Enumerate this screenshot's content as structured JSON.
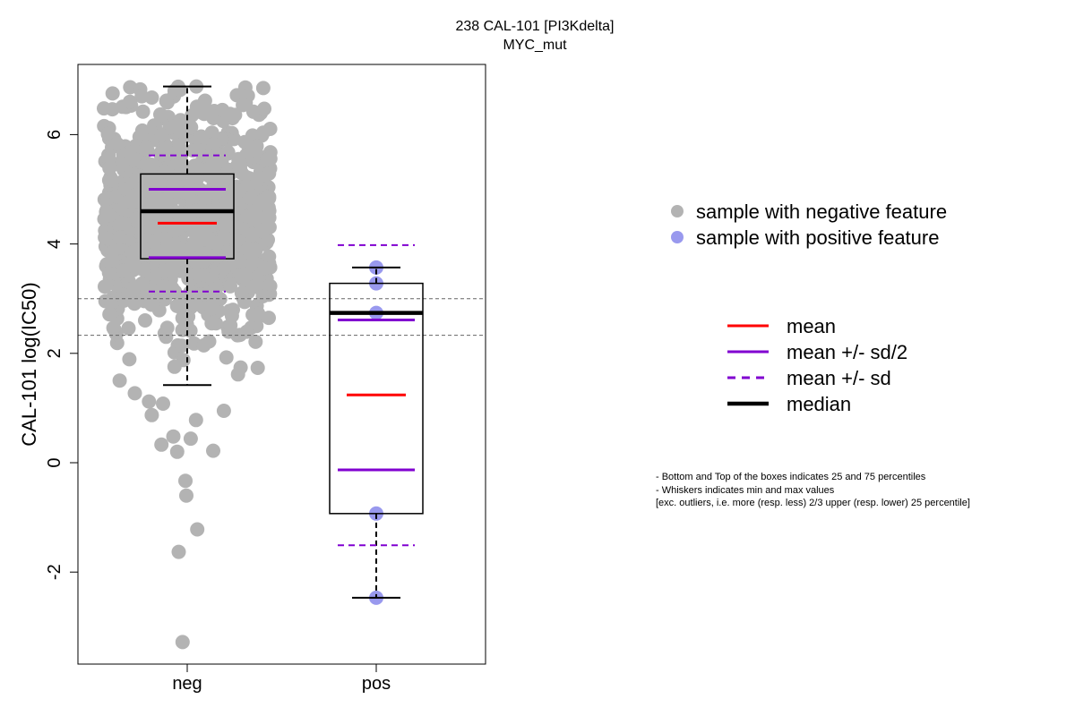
{
  "chart_data": {
    "type": "box+beeswarm",
    "title": "238 CAL-101 [PI3Kdelta]",
    "subtitle": "MYC_mut",
    "ylabel": "CAL-101 log(IC50)",
    "xlabel": "",
    "ylim": [
      -3.7,
      7.3
    ],
    "yticks": [
      -2,
      0,
      2,
      4,
      6
    ],
    "ytick_labels": [
      "-2",
      "0",
      "2",
      "4",
      "6"
    ],
    "categories": [
      "neg",
      "pos"
    ],
    "reference_lines": [
      3.0,
      2.33
    ],
    "colors": {
      "neg_points": "#b3b3b3",
      "pos_points": "#9999ee",
      "mean": "#ff0000",
      "sd": "#8000d0",
      "median": "#000000"
    },
    "groups": [
      {
        "name": "neg",
        "whisker_low": 1.42,
        "q1": 3.73,
        "median": 4.6,
        "q3": 5.28,
        "whisker_high": 6.88,
        "mean": 4.38,
        "mean_minus_half_sd": 3.75,
        "mean_plus_half_sd": 5.0,
        "mean_minus_sd": 3.13,
        "mean_plus_sd": 5.62,
        "outliers": [
          1.27,
          1.12,
          1.08,
          0.95,
          0.87,
          0.78,
          0.48,
          0.44,
          0.33,
          0.22,
          0.2,
          -0.33,
          -0.6,
          -1.22,
          -1.63,
          -3.28
        ],
        "n_points_drawn": 1000
      },
      {
        "name": "pos",
        "whisker_low": -2.47,
        "q1": -0.93,
        "median": 2.74,
        "q3": 3.28,
        "whisker_high": 3.57,
        "mean": 1.24,
        "mean_minus_half_sd": -0.13,
        "mean_plus_half_sd": 2.61,
        "mean_minus_sd": -1.51,
        "mean_plus_sd": 3.98,
        "points": [
          3.57,
          3.28,
          2.74,
          -0.93,
          -2.47
        ]
      }
    ],
    "legend": {
      "points": [
        {
          "label": "sample with negative feature",
          "color": "#b3b3b3"
        },
        {
          "label": "sample with positive feature",
          "color": "#9999ee"
        }
      ],
      "lines": [
        {
          "label": "mean",
          "color": "#ff0000",
          "style": "solid"
        },
        {
          "label": "mean +/- sd/2",
          "color": "#8000d0",
          "style": "solid"
        },
        {
          "label": "mean +/- sd",
          "color": "#8000d0",
          "style": "dashed"
        },
        {
          "label": "median",
          "color": "#000000",
          "style": "thick"
        }
      ]
    },
    "notes": [
      "- Bottom and Top of the boxes indicates 25 and 75 percentiles",
      "- Whiskers indicates min and max values",
      "[exc. outliers, i.e. more (resp. less) 2/3 upper (resp. lower) 25 percentile]"
    ]
  }
}
